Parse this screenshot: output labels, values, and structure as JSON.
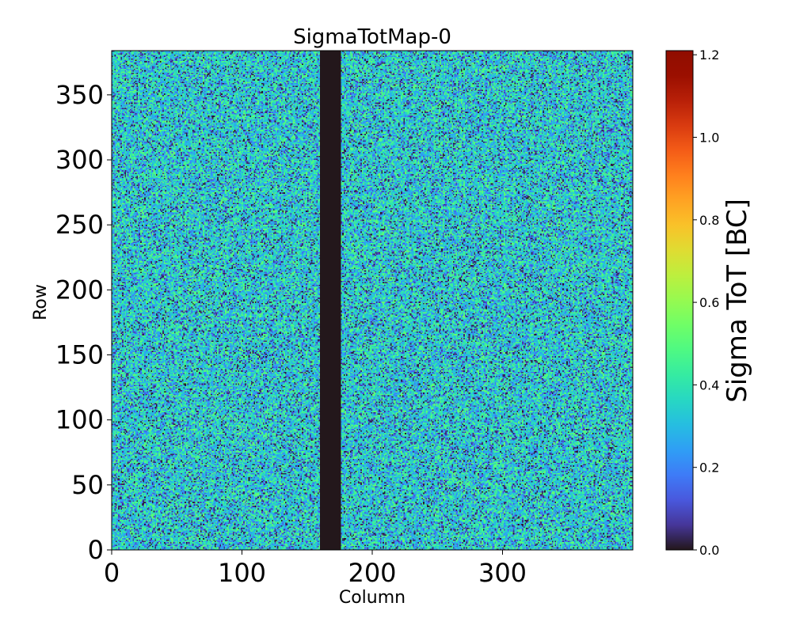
{
  "chart_data": {
    "type": "heatmap",
    "title": "SigmaTotMap-0",
    "xlabel": "Column",
    "ylabel": "Row",
    "xlim": [
      0,
      400
    ],
    "ylim": [
      0,
      384
    ],
    "x_ticks": [
      0,
      100,
      200,
      300
    ],
    "y_ticks": [
      0,
      50,
      100,
      150,
      200,
      250,
      300,
      350
    ],
    "x_tick_labels": [
      "0",
      "100",
      "200",
      "300"
    ],
    "y_tick_labels": [
      "0",
      "50",
      "100",
      "150",
      "200",
      "250",
      "300",
      "350"
    ],
    "dead_columns": [
      160,
      175
    ],
    "dead_value": 0.0,
    "typical_value_range": [
      0.0,
      0.55
    ],
    "typical_mean": 0.33,
    "colorbar": {
      "label": "Sigma ToT [BC]",
      "colormap": "turbo",
      "range": [
        0.0,
        1.21
      ],
      "ticks": [
        0.0,
        0.2,
        0.4,
        0.6,
        0.8,
        1.0,
        1.2
      ],
      "tick_labels": [
        "0.0",
        "0.2",
        "0.4",
        "0.6",
        "0.8",
        "1.0",
        "1.2"
      ]
    }
  }
}
